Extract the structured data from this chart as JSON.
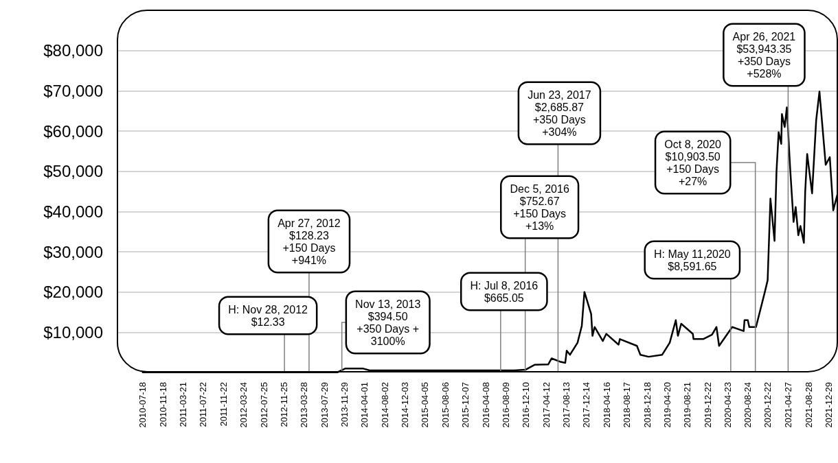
{
  "chart_data": {
    "type": "line",
    "x": [
      "2010-07-18",
      "2013-10-15",
      "2013-12-05",
      "2014-03-20",
      "2014-05-01",
      "2016-10-01",
      "2016-12-08",
      "2017-01-31",
      "2017-04-24",
      "2017-05-15",
      "2017-07-04",
      "2017-08-06",
      "2017-08-15",
      "2017-09-04",
      "2017-10-20",
      "2017-11-15",
      "2017-12-01",
      "2018-01-11",
      "2018-01-19",
      "2018-02-01",
      "2018-03-23",
      "2018-04-13",
      "2018-06-27",
      "2018-07-05",
      "2018-10-17",
      "2018-11-07",
      "2018-12-27",
      "2019-03-20",
      "2019-05-05",
      "2019-06-11",
      "2019-06-24",
      "2019-07-14",
      "2019-09-23",
      "2019-09-27",
      "2019-11-25",
      "2020-01-18",
      "2020-02-14",
      "2020-03-01",
      "2020-05-20",
      "2020-07-29",
      "2020-08-03",
      "2020-08-23",
      "2020-09-01",
      "2020-10-12",
      "2020-12-05",
      "2020-12-22",
      "2021-01-08",
      "2021-02-02",
      "2021-02-14",
      "2021-02-27",
      "2021-03-15",
      "2021-03-19",
      "2021-04-05",
      "2021-04-18",
      "2021-05-08",
      "2021-05-29",
      "2021-06-11",
      "2021-06-27",
      "2021-07-10",
      "2021-07-31",
      "2021-08-08",
      "2021-08-20",
      "2021-09-19",
      "2021-10-14",
      "2021-11-03",
      "2021-12-11",
      "2022-01-05",
      "2022-01-26",
      "2022-02-22"
    ],
    "series": [
      {
        "color": "#000000",
        "values": [
          0,
          0,
          1000,
          1000,
          500,
          500,
          700,
          1900,
          2000,
          3500,
          2700,
          2400,
          5400,
          4400,
          7400,
          11600,
          20000,
          14500,
          9100,
          11300,
          7800,
          9600,
          6900,
          8300,
          6600,
          4400,
          3900,
          4400,
          7400,
          13000,
          9100,
          12100,
          9600,
          8300,
          8300,
          9400,
          11300,
          6600,
          11300,
          10300,
          13000,
          13000,
          11300,
          11300,
          20000,
          22900,
          43200,
          32700,
          49900,
          59700,
          56800,
          64200,
          61000,
          65900,
          50900,
          37400,
          41100,
          34100,
          36400,
          32200,
          44900,
          54300,
          44500,
          62700,
          69800,
          51600,
          53500,
          40300,
          44500
        ]
      }
    ],
    "xlim": [
      "2010-02-18",
      "2022-02-24"
    ],
    "xticks": [
      "2010-07-18",
      "2010-11-18",
      "2011-03-21",
      "2011-07-22",
      "2011-11-22",
      "2012-03-24",
      "2012-07-25",
      "2012-11-25",
      "2013-03-28",
      "2013-07-29",
      "2013-11-29",
      "2014-04-01",
      "2014-08-02",
      "2014-12-03",
      "2015-04-05",
      "2015-08-06",
      "2015-12-07",
      "2016-04-08",
      "2016-08-09",
      "2016-12-10",
      "2017-04-12",
      "2017-08-13",
      "2017-12-14",
      "2018-04-16",
      "2018-08-17",
      "2018-12-18",
      "2019-04-20",
      "2019-08-21",
      "2019-12-22",
      "2020-04-23",
      "2020-08-24",
      "2020-12-22",
      "2021-04-27",
      "2021-08-28",
      "2021-12-29"
    ],
    "ylim": [
      0,
      90000
    ],
    "yticks": [
      {
        "value": 10000,
        "label": "$10,000"
      },
      {
        "value": 20000,
        "label": "$20,000"
      },
      {
        "value": 30000,
        "label": "$30,000"
      },
      {
        "value": 40000,
        "label": "$40,000"
      },
      {
        "value": 50000,
        "label": "$50,000"
      },
      {
        "value": 60000,
        "label": "$60,000"
      },
      {
        "value": 70000,
        "label": "$70,000"
      },
      {
        "value": 80000,
        "label": "$80,000"
      }
    ],
    "grid": "y",
    "marker": "none",
    "line_style": "solid",
    "ref_lines": [
      {
        "axis": "x",
        "value": "2013-04-27",
        "label": "Apr 27, 2012\n$128.23\n+150 Days\n+941%",
        "color": "#808080"
      },
      {
        "axis": "x",
        "value": "2012-11-28",
        "label": "H: Nov 28, 2012\n$12.33",
        "color": "#808080"
      },
      {
        "axis": "x",
        "value": "2013-11-13",
        "label": "Nov 13, 2013\n$394.50\n+350 Days +\n3100%",
        "color": "#808080"
      },
      {
        "axis": "x",
        "value": "2016-07-08",
        "label": "H: Jul 8, 2016\n$665.05",
        "color": "#808080"
      },
      {
        "axis": "x",
        "value": "2016-12-05",
        "label": "Dec 5, 2016\n$752.67\n+150 Days\n+13%",
        "color": "#808080"
      },
      {
        "axis": "x",
        "value": "2017-06-23",
        "label": "Jun 23, 2017\n$2,685.87\n+350 Days\n+304%",
        "color": "#808080"
      },
      {
        "axis": "x",
        "value": "2020-05-11",
        "label": "H: May 11,2020\n$8,591.65",
        "color": "#808080"
      },
      {
        "axis": "x",
        "value": "2020-10-08",
        "label": "Oct 8, 2020\n$10,903.50\n+150 Days\n+27%",
        "color": "#808080"
      },
      {
        "axis": "x",
        "value": "2021-04-26",
        "label": "Apr 26, 2021\n$53,943.35\n+350 Days\n+528%",
        "color": "#808080"
      }
    ]
  }
}
